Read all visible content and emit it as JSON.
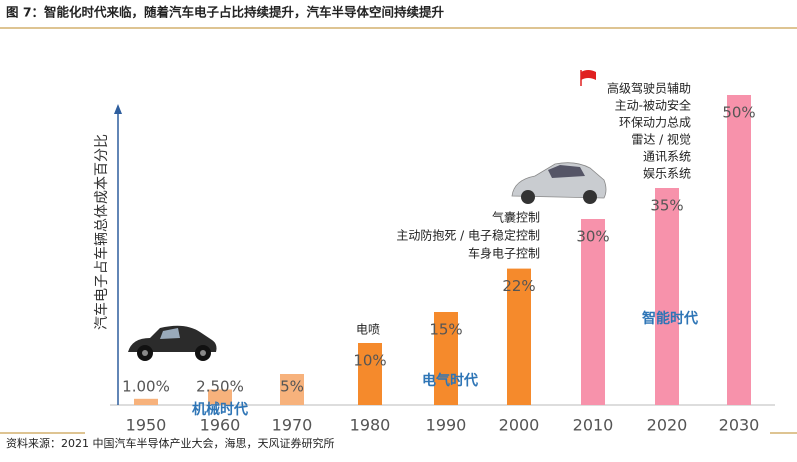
{
  "chart_data": {
    "type": "bar",
    "title": "图 7：智能化时代来临，随着汽车电子占比持续提升，汽车半导体空间持续提升",
    "source": "资料来源：2021 中国汽车半导体产业大会，海思，天风证券研究所",
    "y_label": "汽车电子占车辆总体成本百分比",
    "categories": [
      "1950",
      "1960",
      "1970",
      "1980",
      "1990",
      "2000",
      "2010",
      "2020",
      "2030"
    ],
    "values": [
      1,
      2.5,
      5,
      10,
      15,
      22,
      30,
      35,
      50
    ],
    "value_labels": [
      "1.00%",
      "2.50%",
      "5%",
      "10%",
      "15%",
      "22%",
      "30%",
      "35%",
      "50%"
    ],
    "colors": [
      "#f7b27c",
      "#f7b27c",
      "#f7b27c",
      "#f58a2c",
      "#f58a2c",
      "#f58a2c",
      "#f792ab",
      "#f792ab",
      "#f792ab"
    ],
    "ylim": [
      0,
      50
    ],
    "eras": [
      "机械时代",
      "电气时代",
      "智能时代"
    ],
    "features_1980": [
      "电喷"
    ],
    "features_2000": [
      "气囊控制",
      "主动防抱死 / 电子稳定控制",
      "车身电子控制"
    ],
    "features_2030": [
      "高级驾驶员辅助",
      "主动-被动安全",
      "环保动力总成",
      "雷达 / 视觉",
      "通讯系统",
      "娱乐系统"
    ]
  }
}
